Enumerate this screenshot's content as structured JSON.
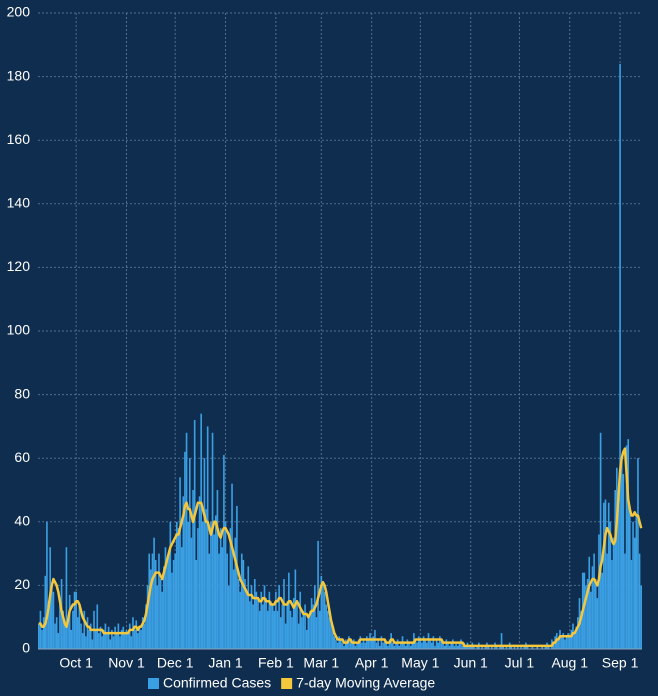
{
  "chart_data": {
    "type": "bar_line",
    "categories": [
      null,
      null,
      null,
      null,
      null,
      null,
      null,
      null,
      null,
      null,
      null,
      null,
      null,
      null,
      null,
      null,
      null,
      null,
      null,
      null,
      null,
      null,
      null,
      "Oct 1",
      null,
      null,
      null,
      null,
      null,
      null,
      null,
      null,
      null,
      null,
      null,
      null,
      null,
      null,
      null,
      null,
      null,
      null,
      null,
      null,
      null,
      null,
      null,
      null,
      null,
      null,
      null,
      null,
      null,
      null,
      "Nov 1",
      null,
      null,
      null,
      null,
      null,
      null,
      null,
      null,
      null,
      null,
      null,
      null,
      null,
      null,
      null,
      null,
      null,
      null,
      null,
      null,
      null,
      null,
      null,
      null,
      null,
      null,
      null,
      null,
      null,
      "Dec 1",
      null,
      null,
      null,
      null,
      null,
      null,
      null,
      null,
      null,
      null,
      null,
      null,
      null,
      null,
      null,
      null,
      null,
      null,
      null,
      null,
      null,
      null,
      null,
      null,
      null,
      null,
      null,
      null,
      null,
      null,
      "Jan 1",
      null,
      null,
      null,
      null,
      null,
      null,
      null,
      null,
      null,
      null,
      null,
      null,
      null,
      null,
      null,
      null,
      null,
      null,
      null,
      null,
      null,
      null,
      null,
      null,
      null,
      null,
      null,
      null,
      null,
      null,
      "Feb 1",
      null,
      null,
      null,
      null,
      null,
      null,
      null,
      null,
      null,
      null,
      null,
      null,
      null,
      null,
      null,
      null,
      null,
      null,
      null,
      null,
      null,
      null,
      null,
      null,
      null,
      null,
      null,
      "Mar 1",
      null,
      null,
      null,
      null,
      null,
      null,
      null,
      null,
      null,
      null,
      null,
      null,
      null,
      null,
      null,
      null,
      null,
      null,
      null,
      null,
      null,
      null,
      null,
      null,
      null,
      null,
      null,
      null,
      null,
      null,
      "Apr 1",
      null,
      null,
      null,
      null,
      null,
      null,
      null,
      null,
      null,
      null,
      null,
      null,
      null,
      null,
      null,
      null,
      null,
      null,
      null,
      null,
      null,
      null,
      null,
      null,
      null,
      null,
      null,
      null,
      null,
      "May 1",
      null,
      null,
      null,
      null,
      null,
      null,
      null,
      null,
      null,
      null,
      null,
      null,
      null,
      null,
      null,
      null,
      null,
      null,
      null,
      null,
      null,
      null,
      null,
      null,
      null,
      null,
      null,
      null,
      null,
      null,
      "Jun 1",
      null,
      null,
      null,
      null,
      null,
      null,
      null,
      null,
      null,
      null,
      null,
      null,
      null,
      null,
      null,
      null,
      null,
      null,
      null,
      null,
      null,
      null,
      null,
      null,
      null,
      null,
      null,
      null,
      null,
      "Jul 1",
      null,
      null,
      null,
      null,
      null,
      null,
      null,
      null,
      null,
      null,
      null,
      null,
      null,
      null,
      null,
      null,
      null,
      null,
      null,
      null,
      null,
      null,
      null,
      null,
      null,
      null,
      null,
      null,
      null,
      null,
      "Aug 1",
      null,
      null,
      null,
      null,
      null,
      null,
      null,
      null,
      null,
      null,
      null,
      null,
      null,
      null,
      null,
      null,
      null,
      null,
      null,
      null,
      null,
      null,
      null,
      null,
      null,
      null,
      null,
      null,
      null,
      null,
      "Sep 1",
      null,
      null,
      null,
      null,
      null,
      null,
      null,
      null,
      null,
      null,
      null,
      null,
      null
    ],
    "series": [
      {
        "name": "Confirmed Cases",
        "color": "#3b9fe3",
        "kind": "bar",
        "values": [
          8,
          12,
          6,
          10,
          23,
          40,
          15,
          32,
          20,
          18,
          8,
          10,
          5,
          14,
          22,
          12,
          8,
          32,
          10,
          17,
          6,
          12,
          18,
          18,
          10,
          14,
          8,
          5,
          12,
          4,
          10,
          6,
          8,
          3,
          12,
          6,
          14,
          5,
          7,
          4,
          6,
          8,
          5,
          7,
          3,
          6,
          4,
          7,
          5,
          8,
          4,
          6,
          7,
          5,
          6,
          5,
          8,
          4,
          10,
          6,
          9,
          5,
          7,
          6,
          10,
          8,
          14,
          20,
          30,
          25,
          30,
          35,
          28,
          20,
          30,
          22,
          18,
          26,
          32,
          28,
          30,
          40,
          24,
          28,
          30,
          40,
          38,
          54,
          32,
          48,
          62,
          68,
          40,
          60,
          35,
          50,
          72,
          28,
          38,
          48,
          74,
          40,
          60,
          44,
          70,
          30,
          40,
          68,
          36,
          42,
          50,
          30,
          38,
          32,
          61,
          40,
          30,
          20,
          38,
          52,
          25,
          35,
          45,
          22,
          18,
          30,
          28,
          22,
          18,
          26,
          15,
          20,
          14,
          22,
          18,
          16,
          12,
          18,
          14,
          20,
          16,
          12,
          18,
          15,
          14,
          12,
          18,
          12,
          20,
          10,
          14,
          22,
          8,
          15,
          24,
          12,
          10,
          16,
          25,
          14,
          8,
          18,
          10,
          12,
          14,
          6,
          10,
          12,
          16,
          14,
          20,
          10,
          34,
          12,
          23,
          20,
          18,
          14,
          12,
          10,
          8,
          6,
          4,
          3,
          2,
          4,
          3,
          2,
          1,
          3,
          2,
          4,
          3,
          2,
          3,
          1,
          2,
          3,
          4,
          2,
          3,
          2,
          4,
          3,
          5,
          3,
          4,
          6,
          2,
          3,
          1,
          4,
          2,
          3,
          2,
          1,
          3,
          5,
          2,
          1,
          2,
          3,
          1,
          2,
          4,
          2,
          1,
          3,
          2,
          1,
          2,
          5,
          3,
          2,
          4,
          3,
          2,
          4,
          3,
          2,
          5,
          3,
          2,
          4,
          1,
          3,
          2,
          4,
          3,
          2,
          1,
          3,
          2,
          1,
          2,
          3,
          1,
          2,
          1,
          2,
          3,
          1,
          2,
          1,
          2,
          1,
          1,
          2,
          1,
          0,
          1,
          2,
          0,
          1,
          0,
          1,
          2,
          1,
          0,
          1,
          0,
          2,
          1,
          0,
          1,
          5,
          1,
          0,
          1,
          0,
          2,
          1,
          0,
          1,
          0,
          1,
          0,
          1,
          0,
          1,
          2,
          1,
          0,
          0,
          1,
          0,
          0,
          1,
          0,
          0,
          1,
          0,
          1,
          2,
          1,
          0,
          3,
          2,
          4,
          5,
          3,
          6,
          4,
          5,
          3,
          4,
          5,
          4,
          6,
          8,
          5,
          7,
          10,
          16,
          12,
          24,
          24,
          20,
          22,
          29,
          18,
          26,
          30,
          22,
          16,
          36,
          68,
          24,
          46,
          47,
          30,
          46,
          40,
          28,
          35,
          50,
          57,
          45,
          184,
          60,
          55,
          30,
          64,
          66,
          45,
          28,
          40,
          35,
          42,
          60,
          30,
          20
        ]
      },
      {
        "name": "7-day Moving Average",
        "color": "#f5c73d",
        "kind": "line",
        "values": [
          8,
          8,
          7,
          7,
          8,
          10,
          13,
          17,
          20,
          22,
          21,
          20,
          18,
          15,
          12,
          10,
          8,
          7,
          9,
          12,
          13,
          14,
          14,
          15,
          15,
          14,
          12,
          10,
          9,
          8,
          7,
          7,
          6,
          6,
          6,
          6,
          6,
          6,
          6,
          6,
          5,
          5,
          5,
          5,
          5,
          5,
          5,
          5,
          5,
          5,
          5,
          5,
          5,
          5,
          5,
          5,
          6,
          6,
          6,
          7,
          7,
          6,
          7,
          7,
          8,
          9,
          11,
          14,
          17,
          20,
          22,
          23,
          24,
          24,
          24,
          23,
          22,
          24,
          26,
          28,
          30,
          32,
          33,
          34,
          35,
          36,
          36,
          38,
          40,
          42,
          45,
          46,
          44,
          44,
          42,
          40,
          42,
          44,
          46,
          46,
          46,
          44,
          42,
          40,
          40,
          38,
          36,
          38,
          40,
          40,
          38,
          36,
          35,
          37,
          38,
          38,
          37,
          36,
          34,
          32,
          30,
          28,
          26,
          24,
          22,
          21,
          20,
          19,
          18,
          17,
          17,
          17,
          16,
          16,
          16,
          16,
          15,
          15,
          16,
          16,
          15,
          15,
          15,
          14,
          14,
          14,
          15,
          15,
          16,
          16,
          15,
          14,
          14,
          14,
          15,
          15,
          14,
          13,
          14,
          15,
          14,
          13,
          12,
          11,
          11,
          11,
          10,
          11,
          12,
          12,
          13,
          14,
          16,
          18,
          20,
          21,
          20,
          18,
          15,
          12,
          9,
          7,
          5,
          4,
          3,
          3,
          3,
          3,
          2,
          2,
          2,
          3,
          3,
          2,
          2,
          2,
          2,
          2,
          3,
          3,
          3,
          3,
          3,
          3,
          3,
          3,
          3,
          3,
          3,
          3,
          3,
          3,
          3,
          3,
          2,
          2,
          2,
          3,
          3,
          2,
          2,
          2,
          2,
          2,
          2,
          2,
          2,
          2,
          2,
          2,
          2,
          2,
          3,
          3,
          3,
          3,
          3,
          3,
          3,
          3,
          3,
          3,
          3,
          3,
          3,
          3,
          3,
          3,
          3,
          2,
          2,
          2,
          2,
          2,
          2,
          2,
          2,
          2,
          2,
          2,
          2,
          2,
          1,
          1,
          1,
          1,
          1,
          1,
          1,
          1,
          1,
          1,
          1,
          1,
          1,
          1,
          1,
          1,
          1,
          1,
          1,
          1,
          1,
          1,
          1,
          1,
          1,
          1,
          1,
          1,
          1,
          1,
          1,
          1,
          1,
          1,
          1,
          1,
          1,
          1,
          1,
          1,
          1,
          1,
          1,
          1,
          1,
          1,
          1,
          1,
          1,
          1,
          1,
          1,
          1,
          1,
          1,
          2,
          2,
          3,
          3,
          4,
          4,
          4,
          4,
          4,
          4,
          4,
          4,
          5,
          5,
          6,
          7,
          8,
          10,
          12,
          14,
          16,
          18,
          20,
          21,
          22,
          22,
          21,
          20,
          22,
          26,
          28,
          32,
          36,
          38,
          37,
          36,
          34,
          33,
          34,
          40,
          48,
          56,
          60,
          62,
          63,
          55,
          47,
          44,
          42,
          42,
          43,
          42,
          42,
          40,
          38
        ]
      }
    ],
    "ylim": [
      0,
      200
    ],
    "yticks": [
      0,
      20,
      40,
      60,
      80,
      100,
      120,
      140,
      160,
      180,
      200
    ],
    "grid": true,
    "legend": "bottom"
  }
}
